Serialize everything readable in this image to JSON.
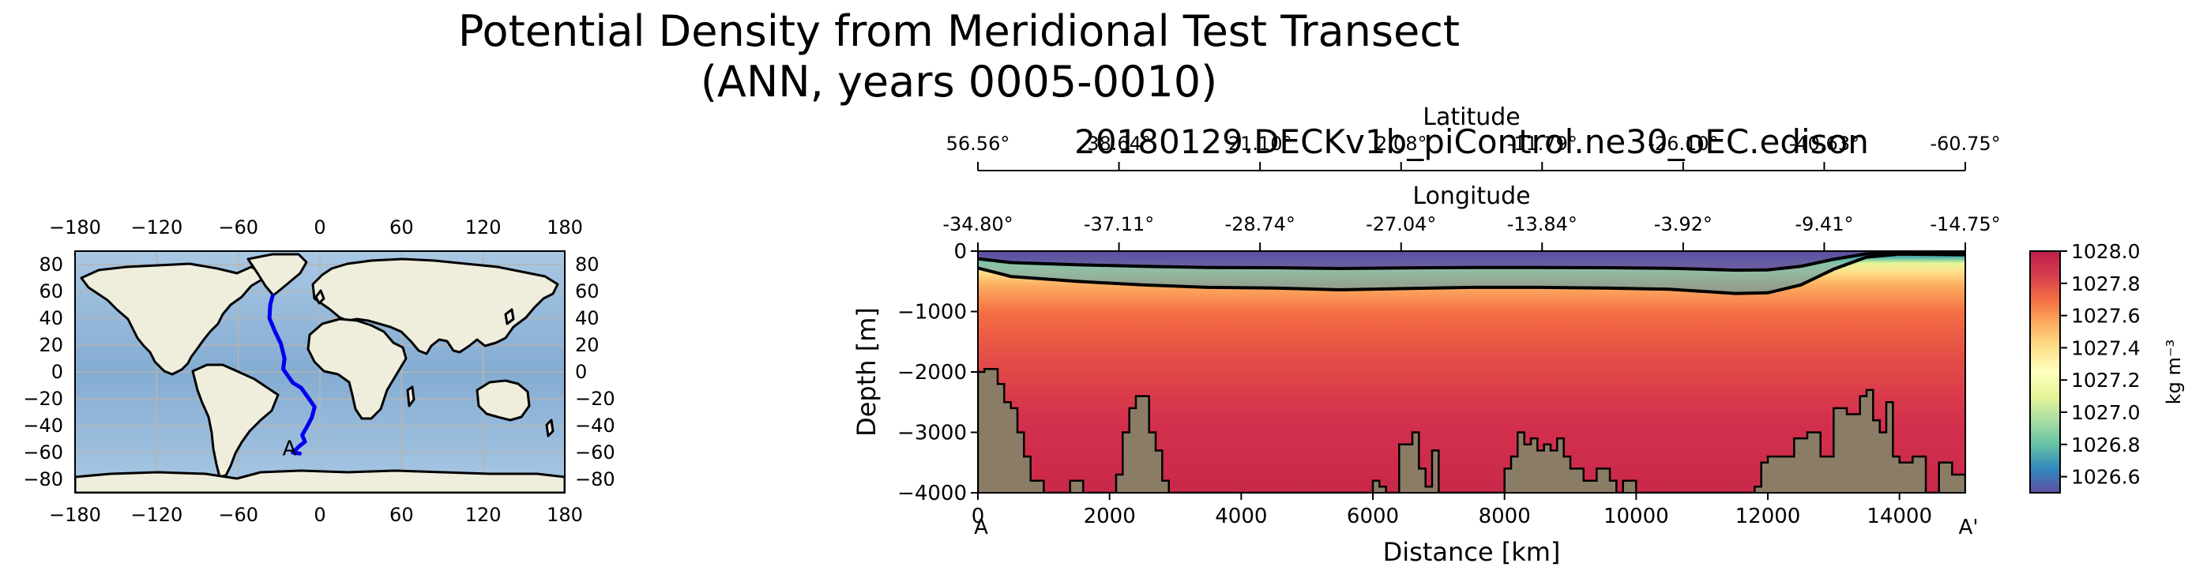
{
  "figure": {
    "title_line1": "Potential Density from Meridional Test Transect",
    "title_line2": "(ANN, years 0005-0010)",
    "run_name": "20180129.DECKv1b_piControl.ne30_oEC.edison"
  },
  "map": {
    "lon_ticks": [
      "−180",
      "−120",
      "−60",
      "0",
      "60",
      "120",
      "180"
    ],
    "lat_ticks": [
      "80",
      "60",
      "40",
      "20",
      "0",
      "−20",
      "−40",
      "−60",
      "−80"
    ],
    "lon_values": [
      -180,
      -120,
      -60,
      0,
      60,
      120,
      180
    ],
    "lat_values": [
      80,
      60,
      40,
      20,
      0,
      -20,
      -40,
      -60,
      -80
    ],
    "transect_label": "A",
    "transect_color": "#0000ee",
    "ocean_color": "#8fb5d8",
    "land_color": "#efeddc",
    "transect": [
      [
        -34.8,
        56.56
      ],
      [
        -36.5,
        50
      ],
      [
        -37.1,
        40
      ],
      [
        -33,
        30
      ],
      [
        -28.7,
        21.1
      ],
      [
        -26,
        10
      ],
      [
        -27,
        2.1
      ],
      [
        -20,
        -8
      ],
      [
        -13.8,
        -11.8
      ],
      [
        -8,
        -20
      ],
      [
        -3.9,
        -26.1
      ],
      [
        -6,
        -34
      ],
      [
        -9.4,
        -40.6
      ],
      [
        -13,
        -47
      ],
      [
        -11,
        -52
      ],
      [
        -14.8,
        -55
      ],
      [
        -20,
        -60
      ],
      [
        -14.75,
        -60.75
      ]
    ]
  },
  "section": {
    "top_axis_latitude": {
      "label": "Latitude",
      "ticks": [
        "56.56°",
        "38.64°",
        "21.10°",
        "2.08°",
        "-11.79°",
        "-26.10°",
        "-40.63°",
        "-60.75°"
      ]
    },
    "top_axis_longitude": {
      "label": "Longitude",
      "ticks": [
        "-34.80°",
        "-37.11°",
        "-28.74°",
        "-27.04°",
        "-13.84°",
        "-3.92°",
        "-9.41°",
        "-14.75°"
      ]
    },
    "xlabel": "Distance [km]",
    "ylabel": "Depth [m]",
    "start_label": "A",
    "end_label": "A'",
    "colorbar_unit": "kg m⁻³",
    "bathymetry_color": "#8b7d65"
  },
  "chart_data": {
    "type": "heatmap",
    "title": "Potential Density from Meridional Test Transect (ANN, years 0005-0010)",
    "subtitle": "20180129.DECKv1b_piControl.ne30_oEC.edison",
    "xlabel": "Distance [km]",
    "ylabel": "Depth [m]",
    "xlim": [
      0,
      15000
    ],
    "ylim": [
      -4000,
      0
    ],
    "x_ticks": [
      0,
      2000,
      4000,
      6000,
      8000,
      10000,
      12000,
      14000
    ],
    "y_ticks": [
      0,
      -1000,
      -2000,
      -3000,
      -4000
    ],
    "top_axis_positions_km": [
      0,
      2143,
      4286,
      6429,
      8571,
      10714,
      12857,
      15000
    ],
    "colorbar": {
      "min": 1026.5,
      "max": 1028.0,
      "ticks": [
        1028.0,
        1027.8,
        1027.6,
        1027.4,
        1027.2,
        1027.0,
        1026.8,
        1026.6
      ],
      "tick_labels": [
        "1028.0",
        "1027.8",
        "1027.6",
        "1027.4",
        "1027.2",
        "1027.0",
        "1026.8",
        "1026.6"
      ],
      "label": "kg m⁻³",
      "colormap": "Spectral_r"
    },
    "contour_depth_profile": {
      "name": "lower contour",
      "x": [
        0,
        500,
        1500,
        2500,
        3500,
        4500,
        5500,
        6500,
        7500,
        8500,
        9500,
        10500,
        11500,
        12000,
        12500,
        13000,
        13500,
        14000,
        15000
      ],
      "y": [
        -280,
        -420,
        -500,
        -560,
        -600,
        -610,
        -640,
        -620,
        -600,
        -600,
        -610,
        -630,
        -700,
        -690,
        -560,
        -300,
        -100,
        -50,
        -60
      ]
    },
    "bathymetry": {
      "x": [
        0,
        100,
        200,
        300,
        400,
        500,
        600,
        700,
        800,
        1000,
        1300,
        1400,
        1500,
        1600,
        1800,
        2100,
        2200,
        2300,
        2400,
        2500,
        2600,
        2700,
        2800,
        2900,
        3000,
        3400,
        3800,
        4200,
        4600,
        5000,
        5400,
        5800,
        6000,
        6100,
        6200,
        6400,
        6600,
        6700,
        6800,
        6900,
        7000,
        7200,
        7400,
        7600,
        7800,
        8000,
        8100,
        8200,
        8300,
        8400,
        8500,
        8600,
        8700,
        8800,
        8900,
        9000,
        9200,
        9400,
        9600,
        9700,
        9800,
        10000,
        10200,
        10400,
        10600,
        10800,
        11000,
        11200,
        11400,
        11600,
        11800,
        11900,
        12000,
        12200,
        12400,
        12600,
        12800,
        13000,
        13200,
        13400,
        13500,
        13600,
        13700,
        13800,
        13900,
        14000,
        14200,
        14400,
        14600,
        14800,
        15000
      ],
      "y": [
        -2000,
        -1950,
        -1950,
        -2200,
        -2500,
        -2600,
        -3000,
        -3400,
        -3800,
        -4000,
        -4000,
        -3800,
        -3800,
        -4000,
        -4000,
        -3700,
        -3000,
        -2600,
        -2400,
        -2400,
        -3000,
        -3300,
        -3800,
        -4000,
        -4000,
        -4000,
        -4000,
        -4000,
        -4000,
        -4000,
        -4000,
        -4000,
        -3800,
        -3900,
        -4000,
        -3200,
        -3000,
        -3600,
        -3900,
        -3300,
        -4000,
        -4000,
        -4000,
        -4000,
        -4000,
        -3600,
        -3400,
        -3000,
        -3200,
        -3100,
        -3300,
        -3200,
        -3300,
        -3100,
        -3400,
        -3600,
        -3800,
        -3600,
        -3800,
        -4000,
        -3800,
        -4000,
        -4000,
        -4000,
        -4000,
        -4000,
        -4000,
        -4000,
        -4000,
        -4000,
        -3900,
        -3500,
        -3400,
        -3400,
        -3100,
        -3000,
        -3400,
        -2600,
        -2700,
        -2400,
        -2300,
        -2800,
        -3000,
        -2500,
        -3400,
        -3500,
        -3400,
        -4000,
        -3500,
        -3700,
        -4000
      ]
    }
  }
}
